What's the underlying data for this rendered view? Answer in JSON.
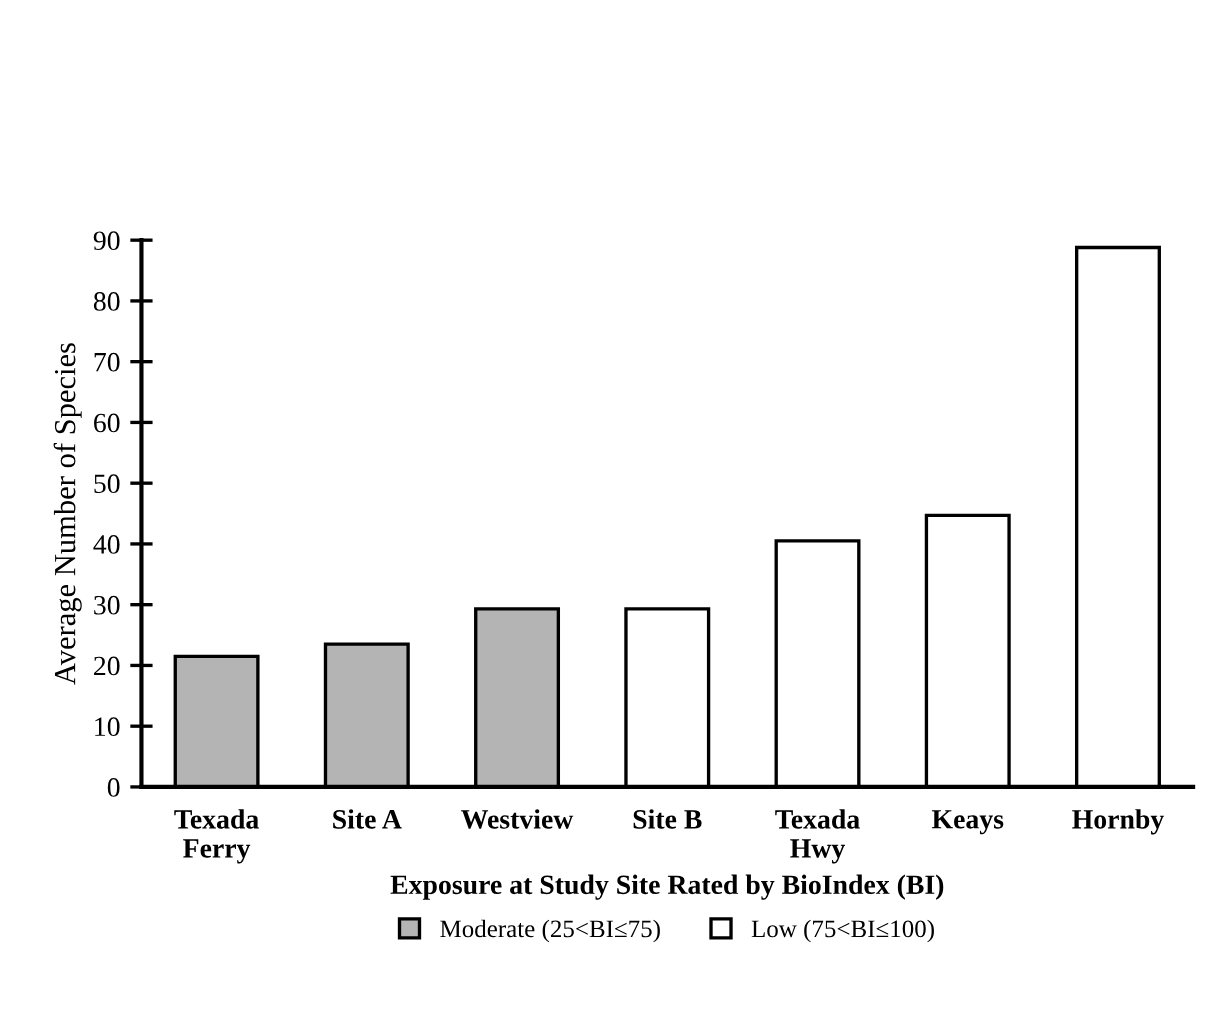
{
  "chart_data": {
    "type": "bar",
    "xlabel": "Exposure at Study Site Rated by BioIndex (BI)",
    "ylabel": "Average Number of Species",
    "categories": [
      "Texada\nFerry",
      "Site A",
      "Westview",
      "Site B",
      "Texada\nHwy",
      "Keays",
      "Hornby"
    ],
    "series": [
      {
        "name": "Moderate (25<BI≤75)",
        "color": "#b4b4b4",
        "values": [
          21.5,
          23.5,
          29.3,
          null,
          null,
          null,
          null
        ]
      },
      {
        "name": "Low (75<BI≤100)",
        "color": "#ffffff",
        "values": [
          null,
          null,
          null,
          29.3,
          40.5,
          44.7,
          88.8
        ]
      }
    ],
    "ylim": [
      0,
      90
    ],
    "yticks": [
      0,
      10,
      20,
      30,
      40,
      50,
      60,
      70,
      80,
      90
    ],
    "grid": false,
    "legend": "bottom"
  }
}
